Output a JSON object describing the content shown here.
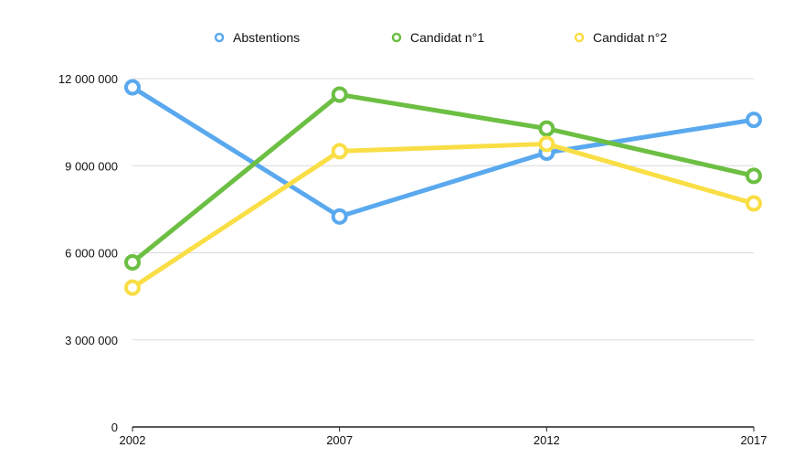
{
  "chart_data": {
    "type": "line",
    "title": "",
    "xlabel": "",
    "ylabel": "",
    "categories": [
      "2002",
      "2007",
      "2012",
      "2017"
    ],
    "ylim": [
      0,
      12000000
    ],
    "yticks": [
      0,
      3000000,
      6000000,
      9000000,
      12000000
    ],
    "ytick_labels": [
      "0",
      "3 000 000",
      "6 000 000",
      "9 000 000",
      "12 000 000"
    ],
    "grid": true,
    "legend_position": "top",
    "series": [
      {
        "name": "Abstentions",
        "color": "#5aa9ef",
        "values": [
          11700000,
          7250000,
          9450000,
          10580000
        ]
      },
      {
        "name": "Candidat n°1",
        "color": "#6cbf43",
        "values": [
          5670000,
          11450000,
          10280000,
          8650000
        ]
      },
      {
        "name": "Candidat n°2",
        "color": "#f9de45",
        "values": [
          4800000,
          9500000,
          9750000,
          7700000
        ]
      }
    ]
  }
}
